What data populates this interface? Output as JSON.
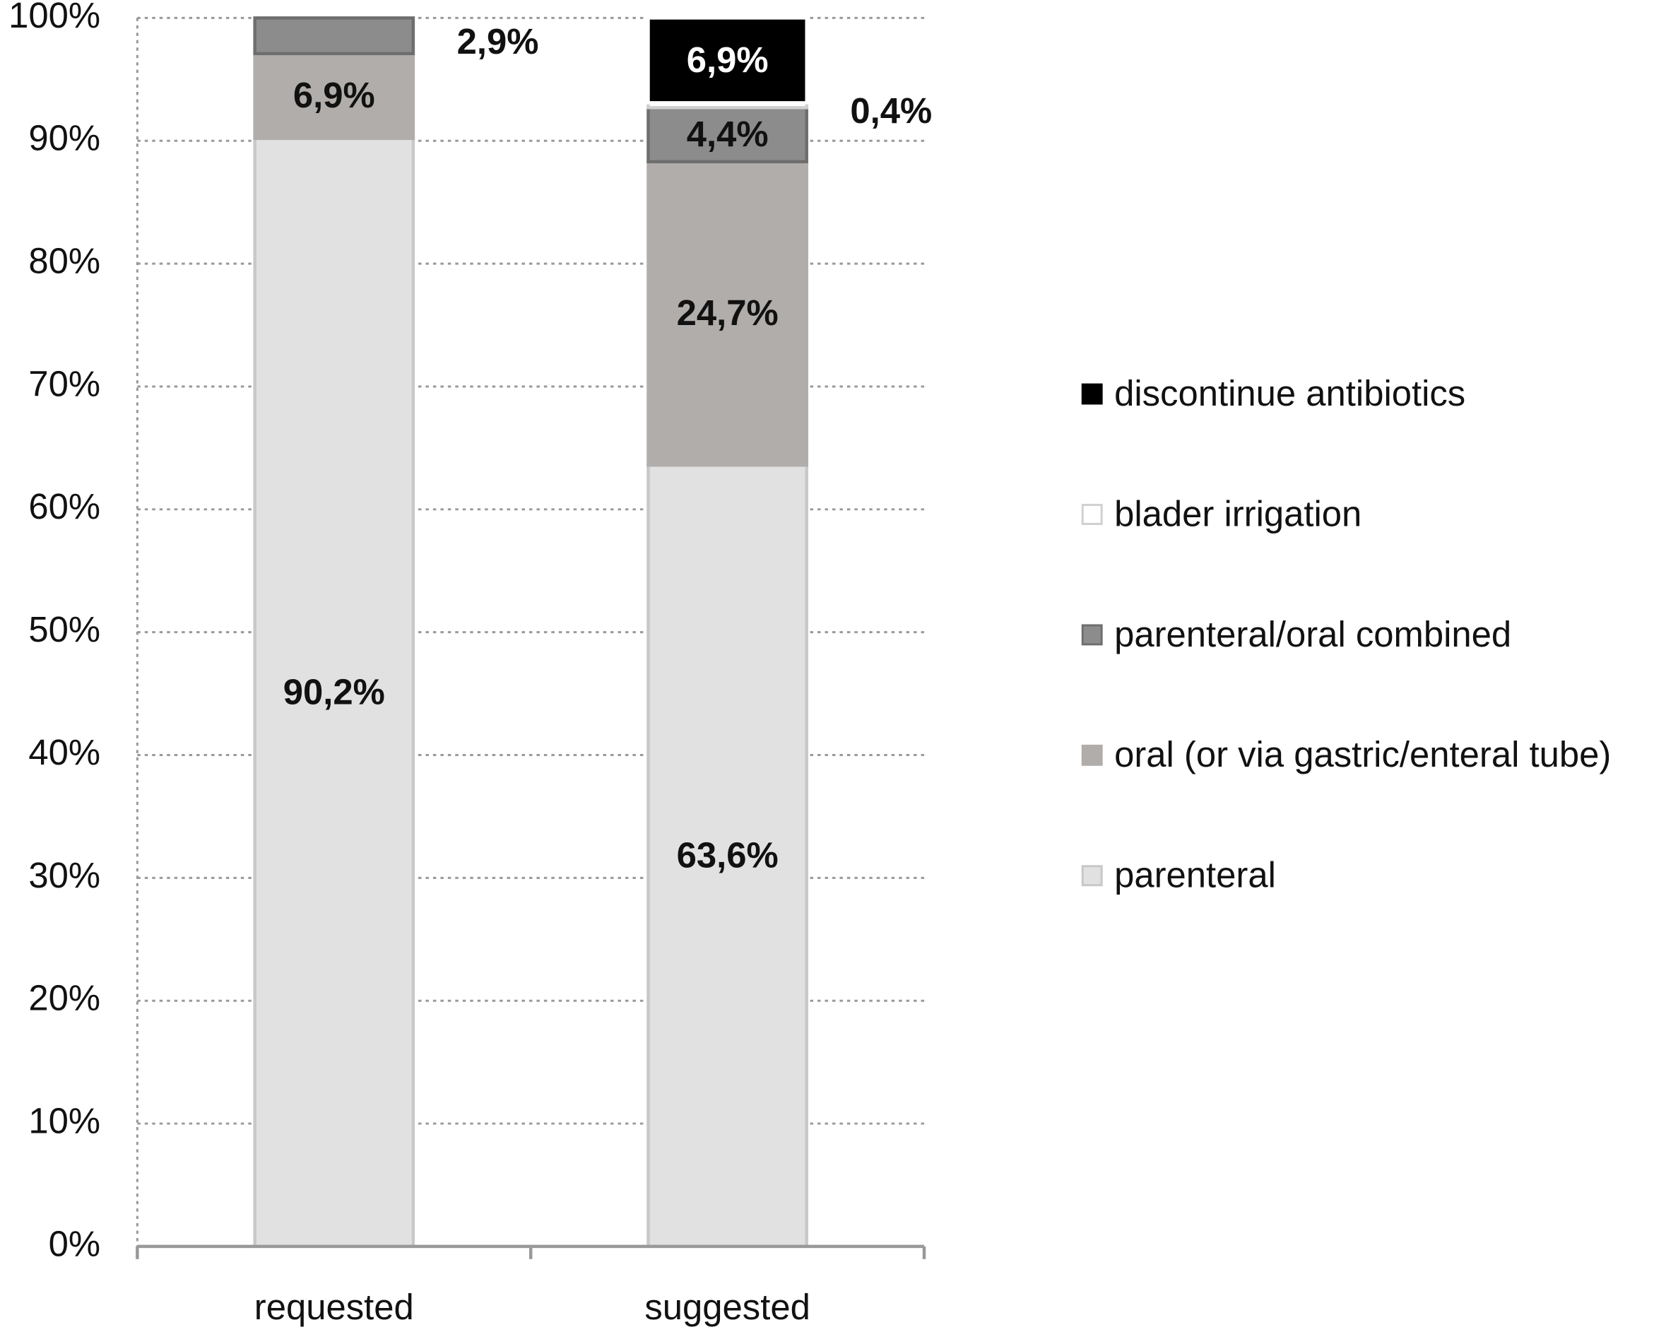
{
  "chart_data": {
    "type": "stacked-bar",
    "categories": [
      "requested",
      "suggested"
    ],
    "series": [
      {
        "name": "parenteral",
        "color": "#e1e1e1",
        "stroke": "#c8c8c8",
        "values": [
          90.2,
          63.6
        ],
        "value_labels": [
          "90,2%",
          "63,6%"
        ]
      },
      {
        "name": "oral (or via gastric/enteral tube)",
        "color": "#b0adab",
        "stroke": "#b0adab",
        "values": [
          6.9,
          24.7
        ],
        "value_labels": [
          "6,9%",
          "24,7%"
        ]
      },
      {
        "name": "parenteral/oral combined",
        "color": "#8c8c8c",
        "stroke": "#6e6e6e",
        "values": [
          2.9,
          4.4
        ],
        "value_labels": [
          "2,9%",
          "4,4%"
        ]
      },
      {
        "name": "blader irrigation",
        "color": "#ffffff",
        "stroke": "#d0d0d0",
        "values": [
          0,
          0.4
        ],
        "value_labels": [
          null,
          "0,4%"
        ]
      },
      {
        "name": "discontinue antibiotics",
        "color": "#000000",
        "stroke": "#ffffff",
        "values": [
          0,
          6.9
        ],
        "value_labels": [
          null,
          "6,9%"
        ]
      }
    ],
    "ylim": [
      0,
      100
    ],
    "yticks": [
      {
        "value": 0,
        "label": "0%"
      },
      {
        "value": 10,
        "label": "10%"
      },
      {
        "value": 20,
        "label": "20%"
      },
      {
        "value": 30,
        "label": "30%"
      },
      {
        "value": 40,
        "label": "40%"
      },
      {
        "value": 50,
        "label": "50%"
      },
      {
        "value": 60,
        "label": "60%"
      },
      {
        "value": 70,
        "label": "70%"
      },
      {
        "value": 80,
        "label": "80%"
      },
      {
        "value": 90,
        "label": "90%"
      },
      {
        "value": 100,
        "label": "100%"
      }
    ],
    "grid": true,
    "legend": "right"
  }
}
